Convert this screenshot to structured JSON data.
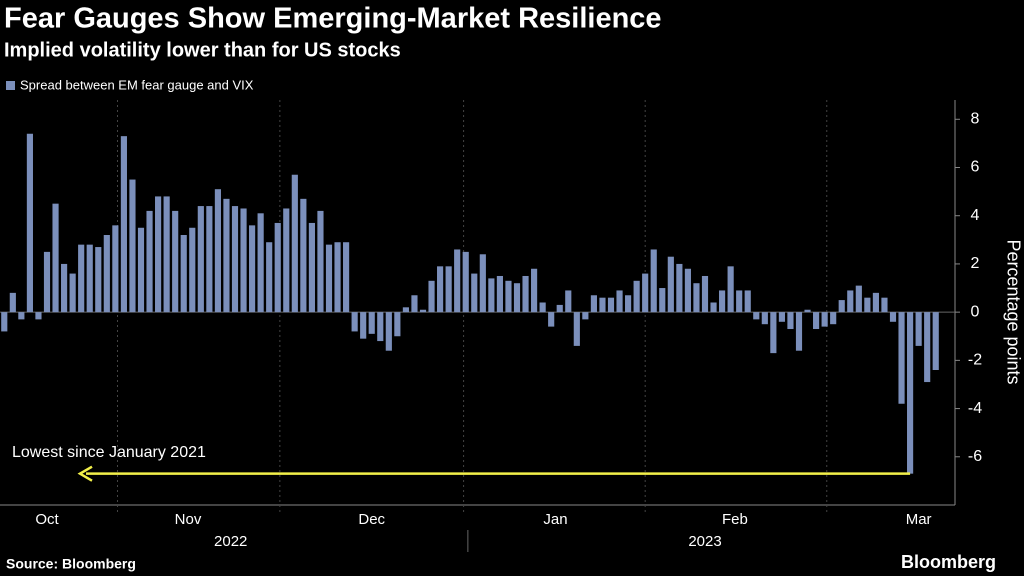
{
  "chart_data": {
    "type": "bar",
    "title": "Fear Gauges Show Emerging-Market Resilience",
    "subtitle": "Implied volatility lower than for US stocks",
    "y_label": "Percentage points",
    "source": "Source: Bloomberg",
    "brand": "Bloomberg",
    "annotation": "Lowest since January 2021",
    "series": [
      {
        "name": "Spread between EM fear gauge and VIX",
        "color": "#7b8fbb",
        "values": [
          -0.8,
          0.8,
          -0.3,
          7.4,
          -0.3,
          2.5,
          4.5,
          2.0,
          1.6,
          2.8,
          2.8,
          2.7,
          3.2,
          3.6,
          7.3,
          5.5,
          3.5,
          4.2,
          4.8,
          4.8,
          4.2,
          3.2,
          3.5,
          4.4,
          4.4,
          5.1,
          4.7,
          4.4,
          4.3,
          3.6,
          4.1,
          2.9,
          3.7,
          4.3,
          5.7,
          4.7,
          3.7,
          4.2,
          2.8,
          2.9,
          2.9,
          -0.8,
          -1.1,
          -0.9,
          -1.2,
          -1.6,
          -1.0,
          0.2,
          0.7,
          0.1,
          1.3,
          1.9,
          1.9,
          2.6,
          2.5,
          1.6,
          2.4,
          1.4,
          1.5,
          1.3,
          1.2,
          1.5,
          1.8,
          0.4,
          -0.6,
          0.3,
          0.9,
          -1.4,
          -0.3,
          0.7,
          0.6,
          0.6,
          0.9,
          0.7,
          1.3,
          1.6,
          2.6,
          1.0,
          2.3,
          2.0,
          1.8,
          1.2,
          1.5,
          0.4,
          0.9,
          1.9,
          0.9,
          0.9,
          -0.3,
          -0.5,
          -1.7,
          -0.4,
          -0.7,
          -1.6,
          0.1,
          -0.7,
          -0.6,
          -0.5,
          0.5,
          0.9,
          1.1,
          0.6,
          0.8,
          0.6,
          -0.4,
          -3.8,
          -6.7,
          -1.4,
          -2.9,
          -2.4
        ]
      }
    ],
    "ylim": [
      -8,
      8.8
    ],
    "yticks": [
      -6,
      -4,
      -2,
      0,
      2,
      4,
      6,
      8
    ],
    "xticks": [
      {
        "value": 5,
        "label": "Oct"
      },
      {
        "value": 21.5,
        "label": "Nov"
      },
      {
        "value": 43,
        "label": "Dec"
      },
      {
        "value": 64.5,
        "label": "Jan"
      },
      {
        "value": 85.5,
        "label": "Feb"
      },
      {
        "value": 107,
        "label": "Mar"
      }
    ],
    "year_ticks": [
      {
        "value": 26.5,
        "label": "2022"
      },
      {
        "value": 82,
        "label": "2023"
      }
    ]
  }
}
